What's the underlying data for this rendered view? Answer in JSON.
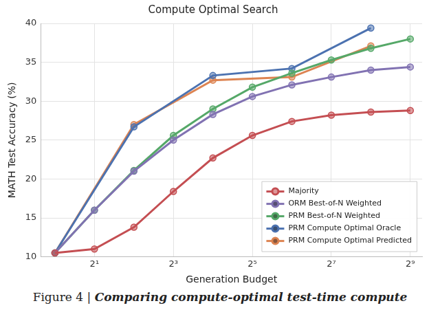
{
  "chart_data": {
    "type": "line",
    "title": "Compute Optimal Search",
    "x_label": "Generation Budget",
    "y_label": "MATH Test Accuracy (%)",
    "log": "x",
    "xlim": [
      0.78,
      630
    ],
    "xticks": [
      {
        "value": 2,
        "label": "2¹"
      },
      {
        "value": 8,
        "label": "2³"
      },
      {
        "value": 32,
        "label": "2⁵"
      },
      {
        "value": 128,
        "label": "2⁷"
      },
      {
        "value": 512,
        "label": "2⁹"
      }
    ],
    "ylim": [
      10,
      40
    ],
    "yticks": [
      10,
      15,
      20,
      25,
      30,
      35,
      40
    ],
    "grid": true,
    "legend": "lower right",
    "series": [
      {
        "name": "Majority",
        "color": "#c44e52",
        "marker": "circle",
        "line_style": "solid",
        "x": [
          1,
          2,
          4,
          8,
          16,
          32,
          64,
          128,
          256,
          512
        ],
        "values": [
          10.5,
          11.0,
          13.8,
          18.4,
          22.7,
          25.6,
          27.4,
          28.2,
          28.6,
          28.8
        ]
      },
      {
        "name": "ORM Best-of-N Weighted",
        "color": "#8172b2",
        "marker": "circle",
        "line_style": "solid",
        "x": [
          1,
          2,
          4,
          8,
          16,
          32,
          64,
          128,
          256,
          512
        ],
        "values": [
          10.5,
          16.0,
          21.0,
          25.0,
          28.3,
          30.6,
          32.1,
          33.1,
          34.0,
          34.4
        ]
      },
      {
        "name": "PRM Best-of-N Weighted",
        "color": "#55a868",
        "marker": "circle",
        "line_style": "solid",
        "x": [
          1,
          2,
          4,
          8,
          16,
          32,
          64,
          128,
          256,
          512
        ],
        "values": [
          10.5,
          16.0,
          21.1,
          25.6,
          29.0,
          31.8,
          33.6,
          35.3,
          36.8,
          38.0
        ]
      },
      {
        "name": "PRM Compute Optimal Oracle",
        "color": "#4c72b0",
        "marker": "circle",
        "line_style": "solid",
        "x": [
          1,
          4,
          16,
          64,
          256
        ],
        "values": [
          10.5,
          26.7,
          33.3,
          34.2,
          39.4
        ]
      },
      {
        "name": "PRM Compute Optimal Predicted",
        "color": "#dd8452",
        "marker": "circle",
        "line_style": "solid",
        "x": [
          1,
          4,
          16,
          64,
          256
        ],
        "values": [
          10.5,
          27.0,
          32.7,
          33.1,
          37.1
        ]
      }
    ]
  },
  "caption": {
    "label": "Figure 4 |",
    "text": "Comparing compute-optimal test-time compute"
  }
}
